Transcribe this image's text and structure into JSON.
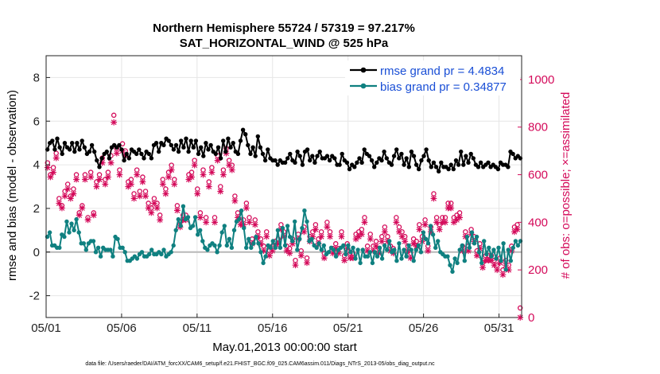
{
  "chart_data": {
    "type": "line",
    "title": "Northern Hemisphere 55724 / 57319 = 97.217%",
    "subtitle": "SAT_HORIZONTAL_WIND @ 525 hPa",
    "xlabel": "May.01,2013 00:00:00 start",
    "ylabel": "rmse and bias (model - observation)",
    "y2label": "# of obs: o=possible; ×=assimilated",
    "footer": "data file: /Users/raeder/DAI/ATM_forcXX/CAM6_setup/f.e21.FHIST_BGC.f09_025.CAM6assim.011/Diags_NTrS_2013-05/obs_diag_output.nc",
    "x_ticks": [
      "05/01",
      "05/06",
      "05/11",
      "05/16",
      "05/21",
      "05/26",
      "05/31"
    ],
    "y_ticks": [
      "-2",
      "0",
      "2",
      "4",
      "6",
      "8"
    ],
    "y2_ticks": [
      "0",
      "200",
      "400",
      "600",
      "800",
      "1000"
    ],
    "xlim": [
      0,
      31.5
    ],
    "ylim": [
      -3,
      9
    ],
    "y2lim": [
      0,
      1100
    ],
    "legend_position": "top-right",
    "series": [
      {
        "name": "rmse grand pr = 4.4834",
        "color": "#000000",
        "axis": "left",
        "values": [
          4.7,
          5.0,
          5.1,
          4.7,
          5.2,
          4.8,
          4.5,
          5.0,
          4.8,
          4.7,
          5.0,
          4.6,
          5.0,
          4.7,
          5.1,
          4.8,
          4.5,
          4.6,
          4.9,
          4.6,
          4.2,
          3.9,
          4.3,
          4.5,
          4.6,
          4.3,
          4.8,
          4.9,
          4.8,
          4.9,
          4.7,
          4.2,
          4.5,
          4.3,
          4.7,
          4.6,
          4.5,
          4.7,
          4.5,
          4.3,
          4.6,
          4.5,
          4.3,
          4.9,
          5.0,
          4.6,
          5.0,
          4.9,
          5.2,
          5.1,
          4.9,
          4.7,
          4.9,
          4.6,
          5.1,
          4.8,
          5.2,
          4.6,
          5.1,
          4.8,
          5.1,
          4.5,
          4.8,
          4.4,
          5.0,
          4.7,
          4.9,
          4.6,
          4.5,
          4.8,
          4.3,
          5.1,
          4.6,
          5.2,
          4.8,
          5.0,
          4.6,
          4.5,
          5.1,
          5.6,
          5.4,
          4.9,
          4.5,
          4.8,
          4.4,
          5.3,
          4.8,
          4.5,
          4.2,
          4.7,
          4.3,
          4.2,
          4.2,
          4.0,
          4.2,
          4.1,
          4.1,
          4.3,
          4.5,
          4.2,
          4.1,
          4.6,
          4.4,
          4.0,
          4.6,
          4.7,
          4.2,
          4.4,
          4.1,
          4.4,
          4.6,
          4.3,
          4.3,
          4.4,
          4.2,
          4.4,
          4.3,
          4.0,
          4.0,
          4.5,
          4.2,
          4.1,
          3.8,
          4.0,
          3.9,
          4.1,
          4.3,
          4.1,
          4.7,
          4.5,
          4.4,
          4.2,
          3.9,
          4.1,
          4.3,
          4.2,
          4.6,
          4.3,
          4.1,
          4.0,
          4.4,
          4.7,
          4.3,
          4.5,
          4.0,
          4.3,
          3.9,
          4.6,
          4.4,
          4.0,
          3.8,
          4.2,
          4.4,
          4.7,
          4.2,
          3.9,
          4.1,
          3.9,
          3.7,
          4.1,
          3.9,
          3.9,
          3.8,
          4.0,
          3.8,
          4.2,
          4.0,
          4.6,
          4.0,
          4.4,
          4.1,
          4.5,
          4.3,
          4.0,
          3.9,
          4.1,
          3.9,
          4.0,
          4.1,
          3.9,
          4.0,
          3.9,
          3.8,
          4.1,
          4.0,
          4.0,
          3.9,
          4.6,
          4.5,
          4.3,
          4.4,
          4.3
        ]
      },
      {
        "name": "bias grand pr = 0.34877",
        "color": "#0f8080",
        "axis": "left",
        "values": [
          0.7,
          0.9,
          0.3,
          0.3,
          0.2,
          0.2,
          0.8,
          0.7,
          1.4,
          0.9,
          1.3,
          1.0,
          1.5,
          0.9,
          0.4,
          0.4,
          0.1,
          0.4,
          0.5,
          0.5,
          0.0,
          0.2,
          -0.2,
          0.2,
          0.1,
          0.1,
          0.1,
          -0.2,
          0.7,
          0.6,
          0.2,
          0.2,
          0.0,
          -0.4,
          -0.4,
          -0.3,
          -0.2,
          -0.3,
          -0.1,
          0.0,
          -0.2,
          -0.2,
          -0.1,
          0.1,
          -0.1,
          -0.1,
          0.0,
          -0.1,
          0.1,
          -0.2,
          -0.1,
          0.0,
          0.3,
          1.0,
          1.5,
          1.2,
          2.1,
          1.5,
          1.6,
          1.1,
          1.2,
          1.6,
          0.8,
          1.0,
          0.5,
          0.2,
          0.1,
          0.3,
          0.4,
          0.3,
          0.0,
          0.3,
          0.9,
          1.2,
          0.3,
          0.6,
          0.2,
          1.0,
          1.4,
          1.5,
          1.9,
          1.1,
          0.2,
          0.6,
          0.2,
          0.4,
          0.7,
          0.4,
          0.0,
          -0.5,
          -0.2,
          0.3,
          0.2,
          0.5,
          0.2,
          1.0,
          0.2,
          1.1,
          0.3,
          1.2,
          0.7,
          0.5,
          1.4,
          0.1,
          0.6,
          1.1,
          1.9,
          1.4,
          0.5,
          0.6,
          0.3,
          0.2,
          0.4,
          0.1,
          0.3,
          -0.1,
          0.0,
          0.2,
          0.1,
          -0.2,
          0.1,
          0.2,
          0.3,
          -0.1,
          0.3,
          0.0,
          0.2,
          -0.3,
          0.1,
          -0.5,
          0.1,
          -0.2,
          -0.2,
          0.0,
          -0.5,
          0.0,
          -0.2,
          0.2,
          -0.3,
          0.3,
          0.1,
          0.5,
          0.0,
          0.1,
          -0.4,
          0.4,
          -0.3,
          0.1,
          -0.2,
          0.3,
          0.1,
          -0.4,
          0.1,
          0.3,
          0.0,
          0.9,
          0.6,
          0.4,
          1.2,
          0.8,
          0.2,
          0.5,
          0.0,
          -0.1,
          -0.2,
          -0.2,
          -0.6,
          -0.9,
          -0.3,
          -0.5,
          0.1,
          0.3,
          -0.4,
          0.7,
          0.2,
          0.9,
          0.4,
          0.7,
          0.0,
          -0.5,
          0.5,
          -0.1,
          0.2,
          -0.2,
          0.1,
          -0.3,
          0.2,
          -0.4,
          0.4,
          -0.8,
          0.1,
          -0.4,
          0.2,
          0.5,
          0.3,
          0.5
        ]
      }
    ],
    "obs_counts": {
      "color": "#d40a5a",
      "axis": "right",
      "possible": [
        650,
        600,
        630,
        690,
        500,
        470,
        530,
        560,
        510,
        540,
        600,
        440,
        470,
        600,
        420,
        610,
        440,
        570,
        600,
        670,
        580,
        610,
        680,
        850,
        710,
        620,
        730,
        700,
        570,
        580,
        520,
        620,
        530,
        590,
        530,
        480,
        460,
        500,
        480,
        430,
        580,
        540,
        610,
        640,
        580,
        470,
        400,
        430,
        430,
        600,
        610,
        660,
        540,
        440,
        620,
        420,
        570,
        630,
        420,
        680,
        550,
        620,
        710,
        660,
        640,
        510,
        440,
        410,
        410,
        480,
        420,
        330,
        410,
        360,
        330,
        300,
        360,
        280,
        300,
        320,
        330,
        390,
        360,
        300,
        290,
        330,
        240,
        350,
        280,
        380,
        250,
        340,
        360,
        390,
        330,
        360,
        270,
        400,
        360,
        290,
        310,
        290,
        360,
        260,
        310,
        270,
        270,
        350,
        360,
        370,
        420,
        300,
        350,
        300,
        320,
        290,
        340,
        380,
        340,
        300,
        290,
        420,
        380,
        360,
        340,
        300,
        270,
        330,
        320,
        390,
        340,
        410,
        300,
        380,
        520,
        420,
        390,
        420,
        420,
        480,
        480,
        420,
        430,
        440,
        300,
        360,
        300,
        370,
        340,
        280,
        310,
        230,
        260,
        260,
        260,
        240,
        220,
        250,
        200,
        240,
        220,
        300,
        380,
        390,
        40
      ],
      "assimilated": [
        630,
        590,
        610,
        670,
        480,
        460,
        510,
        540,
        500,
        520,
        580,
        430,
        460,
        580,
        410,
        590,
        430,
        550,
        580,
        650,
        560,
        590,
        650,
        820,
        690,
        600,
        700,
        680,
        550,
        560,
        500,
        600,
        510,
        570,
        510,
        460,
        440,
        480,
        460,
        410,
        560,
        520,
        590,
        620,
        560,
        450,
        380,
        410,
        410,
        580,
        590,
        640,
        520,
        420,
        600,
        400,
        550,
        610,
        400,
        660,
        530,
        600,
        690,
        640,
        620,
        490,
        420,
        390,
        390,
        460,
        400,
        310,
        390,
        340,
        310,
        280,
        340,
        260,
        280,
        300,
        310,
        370,
        340,
        280,
        270,
        310,
        220,
        330,
        260,
        360,
        230,
        320,
        340,
        370,
        310,
        340,
        250,
        380,
        340,
        270,
        290,
        270,
        340,
        240,
        290,
        250,
        250,
        330,
        340,
        350,
        400,
        280,
        330,
        280,
        300,
        270,
        320,
        360,
        320,
        280,
        270,
        400,
        360,
        340,
        320,
        280,
        250,
        310,
        300,
        370,
        320,
        390,
        280,
        360,
        500,
        400,
        370,
        400,
        400,
        460,
        460,
        400,
        410,
        420,
        280,
        340,
        280,
        350,
        320,
        260,
        290,
        210,
        240,
        240,
        240,
        220,
        200,
        230,
        180,
        220,
        200,
        280,
        360,
        370,
        0
      ]
    }
  }
}
